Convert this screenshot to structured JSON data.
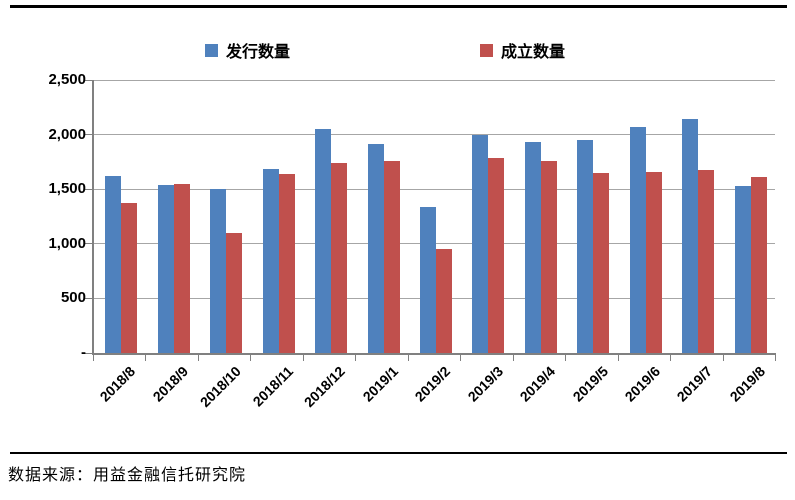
{
  "source_note": "数据来源：用益金融信托研究院",
  "colors": {
    "series_issue": "#4F81BD",
    "series_establish": "#C0504D",
    "gridline": "#A6A6A6",
    "axis": "#808080",
    "rule": "#000000"
  },
  "chart_data": {
    "type": "bar",
    "title": "",
    "xlabel": "",
    "ylabel": "",
    "categories": [
      "2018/8",
      "2018/9",
      "2018/10",
      "2018/11",
      "2018/12",
      "2019/1",
      "2019/2",
      "2019/3",
      "2019/4",
      "2019/5",
      "2019/6",
      "2019/7",
      "2019/8"
    ],
    "series": [
      {
        "name": "发行数量",
        "color": "#4F81BD",
        "values": [
          1620,
          1540,
          1500,
          1685,
          2050,
          1915,
          1335,
          2000,
          1930,
          1955,
          2070,
          2140,
          1525
        ]
      },
      {
        "name": "成立数量",
        "color": "#C0504D",
        "values": [
          1375,
          1550,
          1095,
          1635,
          1740,
          1760,
          955,
          1790,
          1755,
          1650,
          1660,
          1680,
          1610
        ]
      }
    ],
    "ylim": [
      0,
      2500
    ],
    "ytick_step": 500,
    "ytick_labels": [
      "-",
      "500",
      "1,000",
      "1,500",
      "2,000",
      "2,500"
    ],
    "grid": true,
    "legend_position": "top"
  }
}
